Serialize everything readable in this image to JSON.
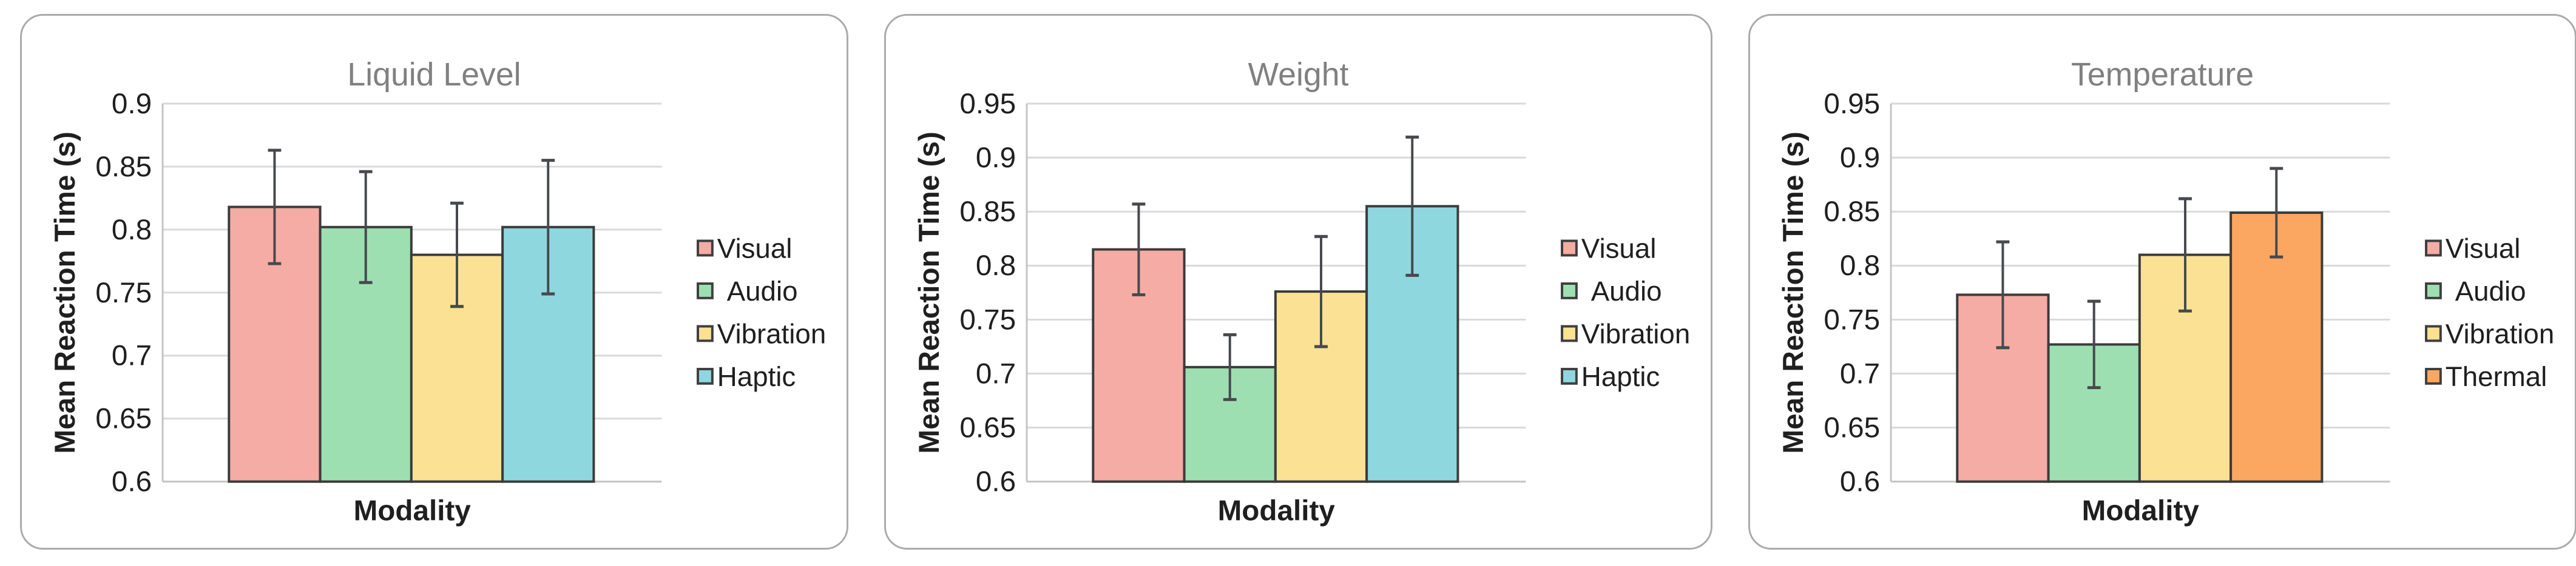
{
  "figure": {
    "description": "Three bar charts comparing mean reaction time by notification modality for three data conditions"
  },
  "style": {
    "page_background": "#ffffff",
    "panel_border_color": "#ababab",
    "title_color": "#808080",
    "tick_text_color": "#1f1f1f",
    "axis_label_color": "#1f1f1f",
    "grid_color": "#d9d9d9",
    "axis_line_color": "#c4c4c4",
    "bar_outline_color": "#3b3b3b",
    "error_bar_color": "#47494e",
    "legend_text_color": "#1f1f1f"
  },
  "chart_data": [
    {
      "type": "bar",
      "title": "Liquid Level",
      "xlabel": "Modality",
      "ylabel": "Mean Reaction Time (s)",
      "ylim": [
        0.6,
        0.9
      ],
      "ytick_labels": [
        "0.9",
        "0.85",
        "0.8",
        "0.75",
        "0.7",
        "0.65",
        "0.6"
      ],
      "grid": true,
      "legend_position": "right",
      "series": [
        {
          "name": "Visual",
          "value": 0.818,
          "error": 0.045,
          "color": "#f5aca4"
        },
        {
          "name": " Audio",
          "value": 0.802,
          "error": 0.044,
          "color": "#9edfb1"
        },
        {
          "name": "Vibration",
          "value": 0.78,
          "error": 0.041,
          "color": "#fae193"
        },
        {
          "name": "Haptic",
          "value": 0.802,
          "error": 0.053,
          "color": "#8fd7de"
        }
      ]
    },
    {
      "type": "bar",
      "title": "Weight",
      "xlabel": "Modality",
      "ylabel": "Mean Reaction Time (s)",
      "ylim": [
        0.6,
        0.95
      ],
      "ytick_labels": [
        "0.95",
        "0.9",
        "0.85",
        "0.8",
        "0.75",
        "0.7",
        "0.65",
        "0.6"
      ],
      "grid": true,
      "legend_position": "right",
      "series": [
        {
          "name": "Visual",
          "value": 0.815,
          "error": 0.042,
          "color": "#f5aca4"
        },
        {
          "name": " Audio",
          "value": 0.706,
          "error": 0.03,
          "color": "#9edfb1"
        },
        {
          "name": "Vibration",
          "value": 0.776,
          "error": 0.051,
          "color": "#fae193"
        },
        {
          "name": "Haptic",
          "value": 0.855,
          "error": 0.064,
          "color": "#8fd7de"
        }
      ]
    },
    {
      "type": "bar",
      "title": "Temperature",
      "xlabel": "Modality",
      "ylabel": "Mean Reaction Time (s)",
      "ylim": [
        0.6,
        0.95
      ],
      "ytick_labels": [
        "0.95",
        "0.9",
        "0.85",
        "0.8",
        "0.75",
        "0.7",
        "0.65",
        "0.6"
      ],
      "grid": true,
      "legend_position": "right",
      "series": [
        {
          "name": "Visual",
          "value": 0.773,
          "error": 0.049,
          "color": "#f5aca4"
        },
        {
          "name": " Audio",
          "value": 0.727,
          "error": 0.04,
          "color": "#9edfb1"
        },
        {
          "name": "Vibration",
          "value": 0.81,
          "error": 0.052,
          "color": "#fae193"
        },
        {
          "name": "Thermal",
          "value": 0.849,
          "error": 0.041,
          "color": "#fba761"
        }
      ]
    }
  ]
}
